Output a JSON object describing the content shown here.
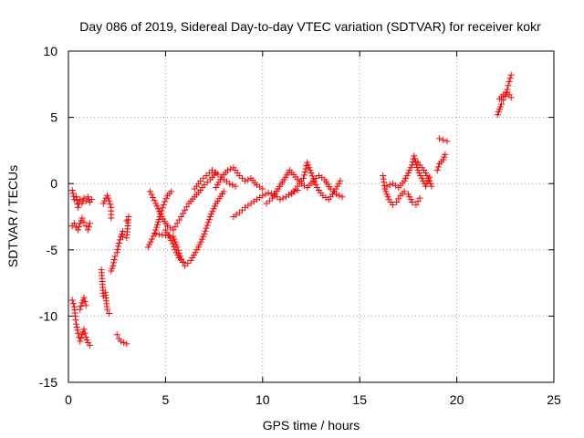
{
  "chart_data": {
    "type": "scatter",
    "title": "Day 086 of 2019, Sidereal Day-to-day VTEC variation (SDTVAR) for receiver kokr",
    "xlabel": "GPS time / hours",
    "ylabel": "SDTVAR / TECUs",
    "xlim": [
      0,
      25
    ],
    "ylim": [
      -15,
      10
    ],
    "xticks": [
      "0",
      "5",
      "10",
      "15",
      "20",
      "25"
    ],
    "yticks": [
      "-15",
      "-10",
      "-5",
      "0",
      "5",
      "10"
    ],
    "grid": true,
    "marker": "plus",
    "marker_color": "#ff0000",
    "series": [
      {
        "name": "SDTVAR",
        "segments": [
          [
            [
              0.2,
              -0.5
            ],
            [
              0.3,
              -1.2
            ],
            [
              0.4,
              -1.0
            ],
            [
              0.5,
              -1.8
            ],
            [
              0.6,
              -1.2
            ],
            [
              0.7,
              -1.5
            ],
            [
              0.8,
              -1.1
            ],
            [
              0.9,
              -1.3
            ],
            [
              1.0,
              -1.0
            ],
            [
              1.1,
              -1.4
            ],
            [
              1.2,
              -1.2
            ]
          ],
          [
            [
              0.2,
              -3.2
            ],
            [
              0.3,
              -3.0
            ],
            [
              0.4,
              -3.3
            ],
            [
              0.5,
              -3.5
            ],
            [
              0.6,
              -3.0
            ],
            [
              0.7,
              -2.6
            ],
            [
              0.8,
              -2.9
            ],
            [
              0.9,
              -3.2
            ],
            [
              1.0,
              -3.5
            ],
            [
              1.1,
              -3.0
            ]
          ],
          [
            [
              0.2,
              -8.8
            ],
            [
              0.3,
              -9.3
            ],
            [
              0.35,
              -10.0
            ],
            [
              0.4,
              -10.6
            ],
            [
              0.5,
              -11.3
            ],
            [
              0.6,
              -11.9
            ],
            [
              0.7,
              -11.4
            ],
            [
              0.8,
              -11.0
            ],
            [
              0.9,
              -11.6
            ],
            [
              1.0,
              -12.0
            ],
            [
              1.1,
              -12.2
            ]
          ],
          [
            [
              0.6,
              -9.5
            ],
            [
              0.7,
              -9.0
            ],
            [
              0.8,
              -8.6
            ],
            [
              0.9,
              -9.2
            ]
          ],
          [
            [
              1.7,
              -6.5
            ],
            [
              1.8,
              -8.5
            ],
            [
              1.9,
              -8.2
            ],
            [
              2.0,
              -9.5
            ],
            [
              2.1,
              -9.8
            ]
          ],
          [
            [
              1.8,
              -1.5
            ],
            [
              2.0,
              -0.9
            ],
            [
              2.1,
              -1.3
            ],
            [
              2.2,
              -1.8
            ],
            [
              2.2,
              -2.6
            ]
          ],
          [
            [
              2.2,
              -6.6
            ],
            [
              2.3,
              -6.2
            ],
            [
              2.4,
              -5.5
            ],
            [
              2.5,
              -5.2
            ],
            [
              2.6,
              -4.5
            ],
            [
              2.7,
              -4.0
            ],
            [
              2.8,
              -3.6
            ]
          ],
          [
            [
              2.5,
              -11.4
            ],
            [
              2.6,
              -11.7
            ],
            [
              2.7,
              -11.9
            ],
            [
              3.0,
              -12.1
            ]
          ],
          [
            [
              2.8,
              -4.0
            ],
            [
              3.0,
              -4.1
            ],
            [
              3.1,
              -2.5
            ],
            [
              3.0,
              -2.8
            ]
          ],
          [
            [
              4.1,
              -4.8
            ],
            [
              4.3,
              -4.2
            ],
            [
              4.5,
              -3.5
            ],
            [
              4.7,
              -2.5
            ],
            [
              4.9,
              -1.6
            ],
            [
              5.1,
              -0.9
            ],
            [
              5.3,
              -0.6
            ]
          ],
          [
            [
              4.2,
              -0.6
            ],
            [
              4.5,
              -1.5
            ],
            [
              4.8,
              -2.5
            ],
            [
              5.1,
              -3.2
            ],
            [
              5.4,
              -3.5
            ],
            [
              5.6,
              -3.0
            ],
            [
              5.8,
              -2.5
            ],
            [
              6.0,
              -2.0
            ],
            [
              6.2,
              -1.5
            ],
            [
              6.5,
              -1.0
            ],
            [
              6.8,
              -0.5
            ],
            [
              7.0,
              -0.1
            ],
            [
              7.3,
              0.3
            ],
            [
              7.6,
              0.8
            ]
          ],
          [
            [
              4.5,
              -3.8
            ],
            [
              5.0,
              -3.9
            ],
            [
              5.4,
              -4.0
            ],
            [
              5.6,
              -4.8
            ],
            [
              5.8,
              -5.7
            ],
            [
              6.0,
              -6.2
            ],
            [
              6.3,
              -5.8
            ],
            [
              6.7,
              -4.8
            ],
            [
              7.0,
              -3.8
            ],
            [
              7.3,
              -2.5
            ],
            [
              7.6,
              -1.5
            ],
            [
              8.0,
              -0.6
            ]
          ],
          [
            [
              5.0,
              -3.5
            ],
            [
              5.3,
              -4.3
            ],
            [
              5.5,
              -5.0
            ],
            [
              5.7,
              -5.6
            ],
            [
              5.9,
              -5.9
            ]
          ],
          [
            [
              6.5,
              -0.4
            ],
            [
              6.8,
              0.2
            ],
            [
              7.1,
              0.6
            ],
            [
              7.4,
              1.0
            ],
            [
              7.7,
              0.7
            ],
            [
              8.0,
              0.3
            ],
            [
              8.3,
              0.0
            ],
            [
              8.6,
              -0.2
            ]
          ],
          [
            [
              7.6,
              -0.3
            ],
            [
              7.9,
              0.5
            ],
            [
              8.2,
              1.0
            ],
            [
              8.5,
              1.2
            ],
            [
              8.8,
              0.6
            ],
            [
              9.1,
              0.2
            ],
            [
              9.4,
              0.4
            ],
            [
              9.7,
              -0.1
            ],
            [
              10.0,
              -0.4
            ]
          ],
          [
            [
              8.5,
              -2.5
            ],
            [
              8.8,
              -2.2
            ],
            [
              9.1,
              -1.8
            ],
            [
              9.4,
              -1.5
            ],
            [
              9.7,
              -1.2
            ],
            [
              10.0,
              -0.9
            ],
            [
              10.3,
              -0.7
            ],
            [
              10.6,
              -0.8
            ],
            [
              10.9,
              -1.2
            ],
            [
              11.2,
              -1.0
            ],
            [
              11.5,
              -0.7
            ],
            [
              11.8,
              -0.5
            ]
          ],
          [
            [
              10.2,
              -1.5
            ],
            [
              10.5,
              -1.1
            ],
            [
              10.8,
              -0.4
            ],
            [
              11.1,
              0.3
            ],
            [
              11.4,
              1.0
            ],
            [
              11.7,
              0.5
            ],
            [
              12.0,
              0.0
            ],
            [
              12.3,
              -0.3
            ],
            [
              12.6,
              0.2
            ],
            [
              12.9,
              0.6
            ],
            [
              13.2,
              0.3
            ],
            [
              13.5,
              -0.4
            ],
            [
              13.8,
              -0.8
            ],
            [
              14.1,
              -1.0
            ]
          ],
          [
            [
              11.5,
              -0.8
            ],
            [
              11.8,
              -0.2
            ],
            [
              12.1,
              0.4
            ],
            [
              12.3,
              1.6
            ],
            [
              12.5,
              0.8
            ],
            [
              12.8,
              -0.3
            ],
            [
              13.1,
              -0.9
            ],
            [
              13.4,
              -1.2
            ],
            [
              13.7,
              -0.6
            ],
            [
              14.0,
              0.2
            ]
          ],
          [
            [
              16.2,
              0.6
            ],
            [
              16.3,
              -0.4
            ],
            [
              16.5,
              -1.2
            ],
            [
              16.7,
              -1.6
            ],
            [
              16.9,
              -1.4
            ],
            [
              17.1,
              -0.9
            ],
            [
              17.3,
              -0.6
            ],
            [
              17.5,
              -0.8
            ],
            [
              17.7,
              -1.4
            ],
            [
              17.9,
              -1.6
            ],
            [
              18.1,
              -1.1
            ]
          ],
          [
            [
              16.4,
              -0.2
            ],
            [
              16.7,
              0.0
            ],
            [
              17.0,
              -0.3
            ],
            [
              17.3,
              0.2
            ],
            [
              17.5,
              0.8
            ],
            [
              17.7,
              1.4
            ],
            [
              17.8,
              2.1
            ],
            [
              18.0,
              1.0
            ],
            [
              18.2,
              0.4
            ],
            [
              18.4,
              -0.2
            ],
            [
              18.6,
              0.5
            ]
          ],
          [
            [
              18.0,
              1.6
            ],
            [
              18.2,
              1.2
            ],
            [
              18.4,
              0.8
            ],
            [
              18.6,
              0.2
            ],
            [
              18.7,
              -0.2
            ]
          ],
          [
            [
              19.1,
              3.4
            ],
            [
              19.3,
              3.3
            ],
            [
              19.5,
              3.2
            ]
          ],
          [
            [
              19.0,
              1.0
            ],
            [
              19.1,
              1.5
            ],
            [
              19.3,
              1.8
            ],
            [
              19.4,
              2.2
            ]
          ],
          [
            [
              22.1,
              5.2
            ],
            [
              22.2,
              5.6
            ],
            [
              22.3,
              6.0
            ],
            [
              22.4,
              6.3
            ],
            [
              22.5,
              6.6
            ],
            [
              22.6,
              7.1
            ],
            [
              22.7,
              7.7
            ],
            [
              22.8,
              8.2
            ]
          ],
          [
            [
              22.2,
              6.4
            ],
            [
              22.4,
              6.7
            ],
            [
              22.6,
              6.9
            ],
            [
              22.8,
              6.5
            ]
          ]
        ]
      }
    ]
  }
}
